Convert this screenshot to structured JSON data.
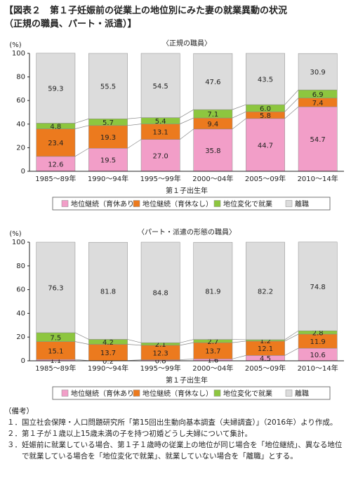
{
  "title": [
    "【図表２　第１子妊娠前の従業上の地位別にみた妻の就業異動の状況",
    "（正規の職員、パート・派遣）】"
  ],
  "chart_data": [
    {
      "type": "bar",
      "stacked": true,
      "title": "〈正規の職員〉",
      "y_label": "(%)",
      "x_label": "第１子出生年",
      "categories": [
        "1985〜89年",
        "1990〜94年",
        "1995〜99年",
        "2000〜04年",
        "2005〜09年",
        "2010〜14年"
      ],
      "ylim": [
        0,
        100
      ],
      "yticks": [
        0,
        20,
        40,
        60,
        80,
        100
      ],
      "grid": false,
      "series": [
        {
          "name": "地位継続（育休あり）",
          "color": "#f29ec8",
          "values": [
            12.6,
            19.5,
            27,
            35.8,
            44.7,
            54.7
          ],
          "value_labels": [
            "12.6",
            "19.5",
            "27.0",
            "35.8",
            "44.7",
            "54.7"
          ]
        },
        {
          "name": "地位継続（育休なし）",
          "color": "#ec7a1e",
          "values": [
            23.4,
            19.3,
            13.1,
            9.4,
            5.8,
            7.4
          ],
          "value_labels": [
            "23.4",
            "19.3",
            "13.1",
            "9.4",
            "5.8",
            "7.4"
          ]
        },
        {
          "name": "地位変化で就業",
          "color": "#8dc63f",
          "values": [
            4.8,
            5.7,
            5.4,
            7.1,
            6,
            6.9
          ],
          "value_labels": [
            "4.8",
            "5.7",
            "5.4",
            "7.1",
            "6.0",
            "6.9"
          ]
        },
        {
          "name": "離職",
          "color": "#dcdcdc",
          "values": [
            59.3,
            55.5,
            54.5,
            47.6,
            43.5,
            30.9
          ],
          "value_labels": [
            "59.3",
            "55.5",
            "54.5",
            "47.6",
            "43.5",
            "30.9"
          ]
        }
      ]
    },
    {
      "type": "bar",
      "stacked": true,
      "title": "〈パート・派遣の形態の職員〉",
      "y_label": "(%)",
      "x_label": "第１子出生年",
      "categories": [
        "1985〜89年",
        "1990〜94年",
        "1995〜99年",
        "2000〜04年",
        "2005〜09年",
        "2010〜14年"
      ],
      "ylim": [
        0,
        100
      ],
      "yticks": [
        0,
        20,
        40,
        60,
        80,
        100
      ],
      "grid": false,
      "series": [
        {
          "name": "地位継続（育休あり）",
          "color": "#f29ec8",
          "values": [
            1.1,
            0.2,
            0.8,
            1.6,
            4.5,
            10.6
          ],
          "value_labels": [
            "1.1",
            "0.2",
            "0.8",
            "1.6",
            "4.5",
            "10.6"
          ]
        },
        {
          "name": "地位継続（育休なし）",
          "color": "#ec7a1e",
          "values": [
            15.1,
            13.7,
            12.3,
            13.7,
            12.1,
            11.9
          ],
          "value_labels": [
            "15.1",
            "13.7",
            "12.3",
            "13.7",
            "12.1",
            "11.9"
          ]
        },
        {
          "name": "地位変化で就業",
          "color": "#8dc63f",
          "values": [
            7.5,
            4.2,
            2.1,
            2.7,
            1.2,
            2.8
          ],
          "value_labels": [
            "7.5",
            "4.2",
            "2.1",
            "2.7",
            "1.2",
            "2.8"
          ]
        },
        {
          "name": "離職",
          "color": "#dcdcdc",
          "values": [
            76.3,
            81.8,
            84.8,
            81.9,
            82.2,
            74.8
          ],
          "value_labels": [
            "76.3",
            "81.8",
            "84.8",
            "81.9",
            "82.2",
            "74.8"
          ]
        }
      ]
    }
  ],
  "notes": {
    "heading": "（備考）",
    "items": [
      {
        "number": "１．",
        "text": "国立社会保障・人口問題研究所「第15回出生動向基本調査（夫婦調査）」（2016年）より作成。"
      },
      {
        "number": "２．",
        "text": "第１子が１歳以上15歳未満の子を持つ初婚どうし夫婦について集計。"
      },
      {
        "number": "３．",
        "text": "妊娠前に就業している場合、第１子１歳時の従業上の地位が同じ場合を「地位継続」、異なる地位で就業している場合を「地位変化で就業」、就業していない場合を「離職」とする。"
      }
    ]
  }
}
